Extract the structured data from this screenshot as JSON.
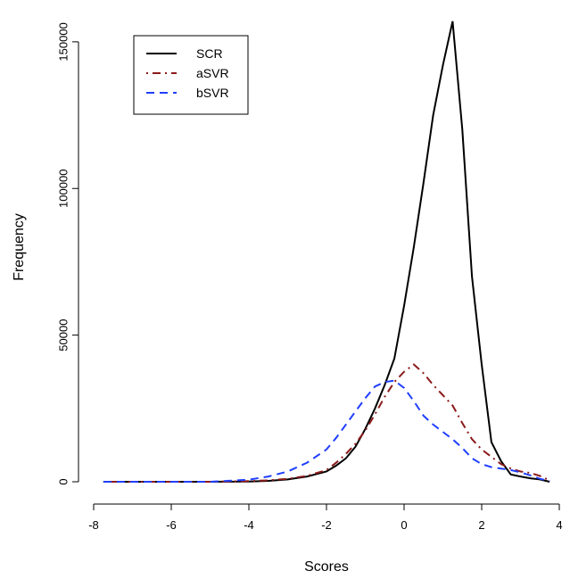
{
  "chart_data": {
    "type": "line",
    "title": "",
    "xlabel": "Scores",
    "ylabel": "Frequency",
    "xlim": [
      -8,
      4
    ],
    "ylim": [
      0,
      160000
    ],
    "x_ticks": [
      -8,
      -6,
      -4,
      -2,
      0,
      2,
      4
    ],
    "y_ticks": [
      0,
      50000,
      100000,
      150000
    ],
    "legend_position": "top-left",
    "series": [
      {
        "name": "SCR",
        "color": "#000000",
        "style": "solid",
        "x": [
          -7.75,
          -6.0,
          -5.0,
          -4.0,
          -3.5,
          -3.0,
          -2.5,
          -2.0,
          -1.75,
          -1.5,
          -1.25,
          -1.0,
          -0.75,
          -0.5,
          -0.25,
          0.0,
          0.25,
          0.5,
          0.75,
          1.0,
          1.25,
          1.5,
          1.75,
          2.0,
          2.25,
          2.5,
          2.75,
          3.0,
          3.25,
          3.5,
          3.75
        ],
        "y": [
          0,
          0,
          0,
          100,
          300,
          800,
          1800,
          3500,
          5500,
          8000,
          12000,
          18000,
          25000,
          33000,
          42000,
          60000,
          80000,
          102000,
          125000,
          142000,
          157000,
          120000,
          70000,
          40000,
          13500,
          7000,
          2500,
          1800,
          1200,
          800,
          0
        ]
      },
      {
        "name": "aSVR",
        "color": "#8b1a1a",
        "style": "dotdash",
        "x": [
          -7.75,
          -6.0,
          -5.0,
          -4.0,
          -3.5,
          -3.0,
          -2.5,
          -2.0,
          -1.75,
          -1.5,
          -1.25,
          -1.0,
          -0.75,
          -0.5,
          -0.25,
          0.0,
          0.25,
          0.5,
          0.75,
          1.0,
          1.25,
          1.5,
          1.75,
          2.0,
          2.25,
          2.5,
          2.75,
          3.0,
          3.25,
          3.5,
          3.75
        ],
        "y": [
          0,
          0,
          0,
          200,
          500,
          1000,
          2000,
          4000,
          6500,
          9500,
          13000,
          17500,
          23000,
          29000,
          34000,
          37500,
          40000,
          37000,
          33000,
          29500,
          26000,
          20000,
          14500,
          11000,
          8500,
          6000,
          4500,
          3500,
          3000,
          2000,
          500
        ]
      },
      {
        "name": "bSVR",
        "color": "#1f3fff",
        "style": "dashed",
        "x": [
          -7.75,
          -6.0,
          -5.0,
          -4.0,
          -3.5,
          -3.0,
          -2.5,
          -2.0,
          -1.75,
          -1.5,
          -1.25,
          -1.0,
          -0.75,
          -0.5,
          -0.25,
          0.0,
          0.25,
          0.5,
          0.75,
          1.0,
          1.25,
          1.5,
          1.75,
          2.0,
          2.25,
          2.5,
          2.75,
          3.0,
          3.25,
          3.5,
          3.75
        ],
        "y": [
          0,
          0,
          0,
          700,
          1800,
          3500,
          6500,
          11000,
          15000,
          19500,
          24000,
          28500,
          32500,
          34000,
          34500,
          32000,
          27500,
          22500,
          19500,
          17000,
          14500,
          11500,
          8000,
          6000,
          5000,
          4500,
          4000,
          3200,
          2200,
          1000,
          300
        ]
      }
    ]
  }
}
